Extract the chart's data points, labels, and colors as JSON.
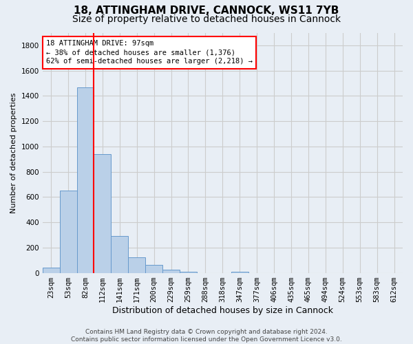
{
  "title1": "18, ATTINGHAM DRIVE, CANNOCK, WS11 7YB",
  "title2": "Size of property relative to detached houses in Cannock",
  "xlabel": "Distribution of detached houses by size in Cannock",
  "ylabel": "Number of detached properties",
  "categories": [
    "23sqm",
    "53sqm",
    "82sqm",
    "112sqm",
    "141sqm",
    "171sqm",
    "200sqm",
    "229sqm",
    "259sqm",
    "288sqm",
    "318sqm",
    "347sqm",
    "377sqm",
    "406sqm",
    "435sqm",
    "465sqm",
    "494sqm",
    "524sqm",
    "553sqm",
    "583sqm",
    "612sqm"
  ],
  "values": [
    40,
    650,
    1470,
    940,
    290,
    125,
    65,
    25,
    10,
    0,
    0,
    10,
    0,
    0,
    0,
    0,
    0,
    0,
    0,
    0,
    0
  ],
  "bar_color": "#bad0e8",
  "bar_edge_color": "#6699cc",
  "vline_color": "red",
  "annotation_text": "18 ATTINGHAM DRIVE: 97sqm\n← 38% of detached houses are smaller (1,376)\n62% of semi-detached houses are larger (2,218) →",
  "annotation_box_color": "white",
  "annotation_box_edge_color": "red",
  "ylim": [
    0,
    1900
  ],
  "yticks": [
    0,
    200,
    400,
    600,
    800,
    1000,
    1200,
    1400,
    1600,
    1800
  ],
  "grid_color": "#cccccc",
  "bg_color": "#e8eef5",
  "footnote": "Contains HM Land Registry data © Crown copyright and database right 2024.\nContains public sector information licensed under the Open Government Licence v3.0.",
  "title1_fontsize": 11,
  "title2_fontsize": 10,
  "xlabel_fontsize": 9,
  "ylabel_fontsize": 8,
  "tick_fontsize": 7.5,
  "footnote_fontsize": 6.5
}
